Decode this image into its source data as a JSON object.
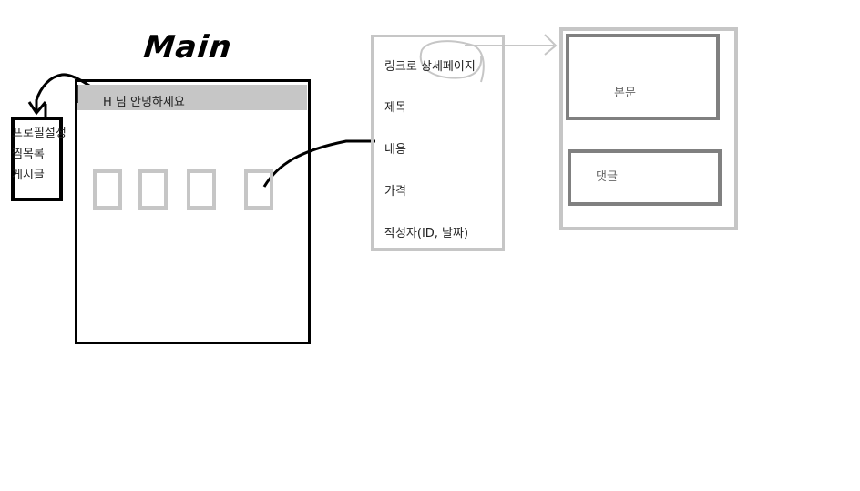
{
  "title": "Main",
  "greeting": "H 님 안녕하세요",
  "side_menu": {
    "items": [
      "프로필설정",
      "찜목록",
      "게시글"
    ]
  },
  "detail_fields": [
    "링크로 상세페이지",
    "제목",
    "내용",
    "가격",
    "작성자(ID, 날짜)"
  ],
  "detail_page": {
    "body_label": "본문",
    "comment_label": "댓글"
  },
  "colors": {
    "ink": "#000000",
    "light_gray": "#c6c6c6",
    "mid_gray": "#808080"
  }
}
